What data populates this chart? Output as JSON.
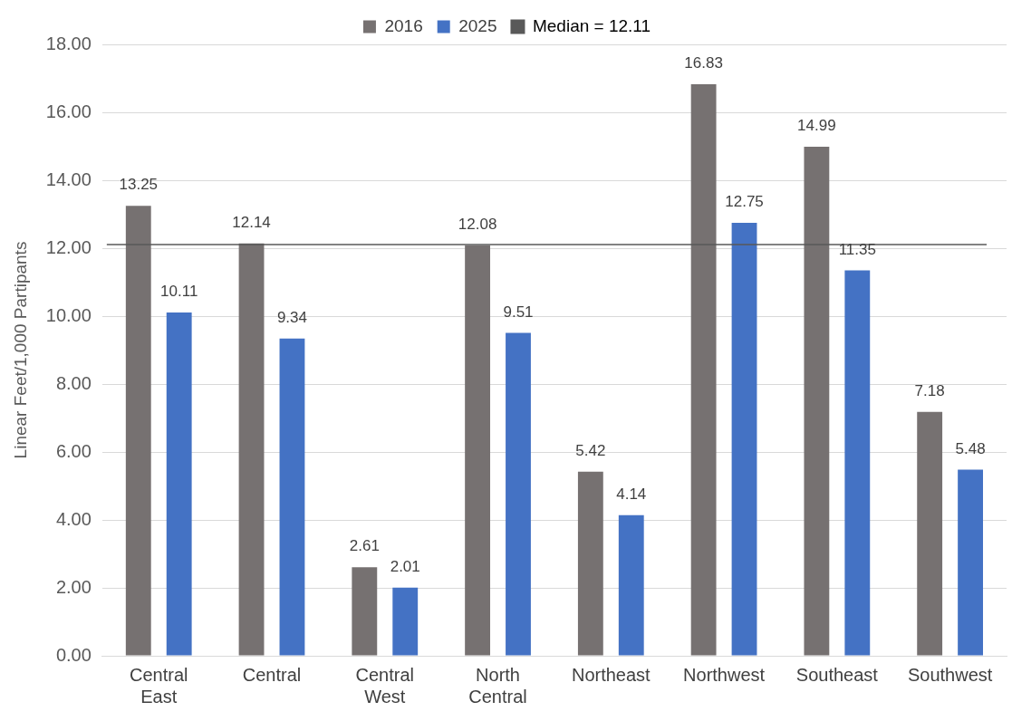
{
  "chart_data": {
    "type": "bar",
    "ylabel": "Linear Feet/1,000 Partipants",
    "categories": [
      "Central East",
      "Central",
      "Central West",
      "North Central",
      "Northeast",
      "Northwest",
      "Southeast",
      "Southwest"
    ],
    "series": [
      {
        "name": "2016",
        "color": "#767171",
        "values": [
          13.25,
          12.14,
          2.61,
          12.08,
          5.42,
          16.83,
          14.99,
          7.18
        ]
      },
      {
        "name": "2025",
        "color": "#4472c4",
        "values": [
          10.11,
          9.34,
          2.01,
          9.51,
          4.14,
          12.75,
          11.35,
          5.48
        ]
      }
    ],
    "ylim": [
      0,
      18
    ],
    "yticks": [
      {
        "value": 0,
        "label": "0.00"
      },
      {
        "value": 2,
        "label": "2.00"
      },
      {
        "value": 4,
        "label": "4.00"
      },
      {
        "value": 6,
        "label": "6.00"
      },
      {
        "value": 8,
        "label": "8.00"
      },
      {
        "value": 10,
        "label": "10.00"
      },
      {
        "value": 12,
        "label": "12.00"
      },
      {
        "value": 14,
        "label": "14.00"
      },
      {
        "value": 16,
        "label": "16.00"
      },
      {
        "value": 18,
        "label": "18.00"
      }
    ],
    "ref_lines": [
      {
        "axis": "y",
        "value": 12.11,
        "label": "Median = 12.11",
        "color": "#595959"
      }
    ],
    "grid": "y",
    "legend": "top",
    "data_labels": true
  }
}
